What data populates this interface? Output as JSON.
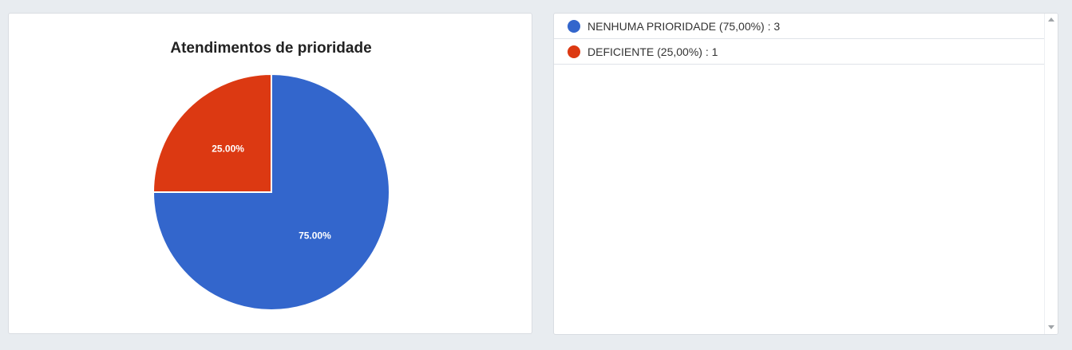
{
  "chart_data": {
    "type": "pie",
    "title": "Atendimentos de prioridade",
    "categories": [
      "NENHUMA PRIORIDADE",
      "DEFICIENTE"
    ],
    "values": [
      3,
      1
    ],
    "slice_labels": [
      "75.00%",
      "25.00%"
    ],
    "colors": [
      "#3366cc",
      "#dc3912"
    ],
    "start_angle_deg": 0,
    "direction": "clockwise"
  },
  "legend": {
    "items": [
      {
        "label": "NENHUMA PRIORIDADE (75,00%) : 3",
        "color": "#3366cc"
      },
      {
        "label": "DEFICIENTE (25,00%) : 1",
        "color": "#dc3912"
      }
    ]
  },
  "icons": {
    "scroll_up": "scroll-up-arrow-icon",
    "scroll_down": "scroll-down-arrow-icon"
  }
}
